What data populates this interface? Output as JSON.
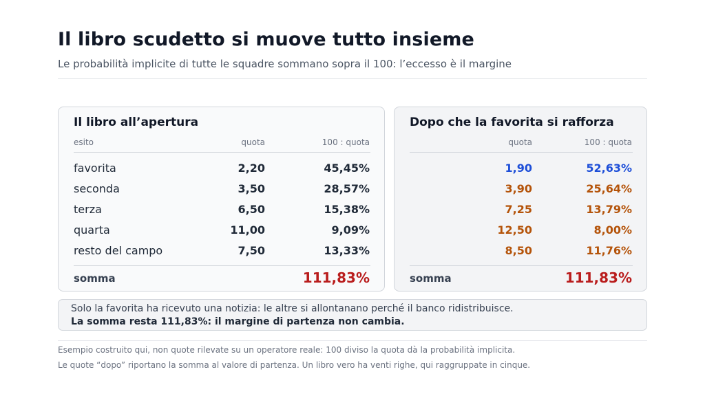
{
  "header": {
    "title": "Il libro scudetto si muove tutto insieme",
    "subtitle": "Le probabilità implicite di tutte le squadre sommano sopra il 100: l’eccesso è il margine"
  },
  "colors": {
    "shortened": "#1d4ed8",
    "drifted": "#b45309",
    "sum": "#b91c1c"
  },
  "opening": {
    "title": "Il libro all’apertura",
    "col_outcome": "esito",
    "col_quota": "quota",
    "col_prob": "100 : quota",
    "rows": [
      {
        "name": "favorita",
        "quota": "2,20",
        "prob": "45,45%"
      },
      {
        "name": "seconda",
        "quota": "3,50",
        "prob": "28,57%"
      },
      {
        "name": "terza",
        "quota": "6,50",
        "prob": "15,38%"
      },
      {
        "name": "quarta",
        "quota": "11,00",
        "prob": "9,09%"
      },
      {
        "name": "resto del campo",
        "quota": "7,50",
        "prob": "13,33%"
      }
    ],
    "sum_label": "somma",
    "sum_value": "111,83%"
  },
  "after": {
    "title": "Dopo che la favorita si rafforza",
    "col_quota": "quota",
    "col_prob": "100 : quota",
    "rows": [
      {
        "quota": "1,90",
        "prob": "52,63%",
        "direction": "shortened"
      },
      {
        "quota": "3,90",
        "prob": "25,64%",
        "direction": "drifted"
      },
      {
        "quota": "7,25",
        "prob": "13,79%",
        "direction": "drifted"
      },
      {
        "quota": "12,50",
        "prob": "8,00%",
        "direction": "drifted"
      },
      {
        "quota": "8,50",
        "prob": "11,76%",
        "direction": "drifted"
      }
    ],
    "sum_label": "somma",
    "sum_value": "111,83%"
  },
  "note": {
    "line1": "Solo la favorita ha ricevuto una notizia: le altre si allontanano perché il banco ridistribuisce.",
    "line2": "La somma resta 111,83%: il margine di partenza non cambia."
  },
  "footnotes": {
    "line1": "Esempio costruito qui, non quote rilevate su un operatore reale: 100 diviso la quota dà la probabilità implicita.",
    "line2": "Le quote “dopo” riportano la somma al valore di partenza. Un libro vero ha venti righe, qui raggruppate in cinque."
  }
}
